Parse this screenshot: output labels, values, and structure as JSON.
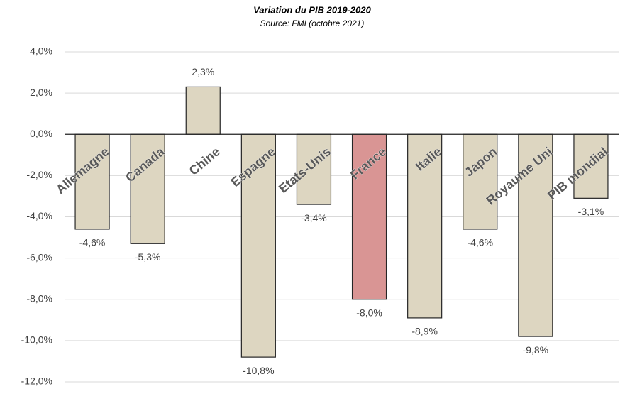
{
  "chart_data": {
    "type": "bar",
    "title": "Variation du PIB 2019-2020",
    "subtitle": "Source: FMI (octobre 2021)",
    "categories": [
      "Allemagne",
      "Canada",
      "Chine",
      "Espagne",
      "Etats-Unis",
      "France",
      "Italie",
      "Japon",
      "Royaume Uni",
      "PIB mondial"
    ],
    "values": [
      -4.6,
      -5.3,
      2.3,
      -10.8,
      -3.4,
      -8.0,
      -8.9,
      -4.6,
      -9.8,
      -3.1
    ],
    "value_labels": [
      "-4,6%",
      "-5,3%",
      "2,3%",
      "-10,8%",
      "-3,4%",
      "-8,0%",
      "-8,9%",
      "-4,6%",
      "-9,8%",
      "-3,1%"
    ],
    "colors": [
      "#ddd6c1",
      "#ddd6c1",
      "#ddd6c1",
      "#ddd6c1",
      "#ddd6c1",
      "#d99594",
      "#ddd6c1",
      "#ddd6c1",
      "#ddd6c1",
      "#ddd6c1"
    ],
    "ylim": [
      -12,
      4
    ],
    "yticks": [
      {
        "value": -12,
        "label": "-12,0%"
      },
      {
        "value": -10,
        "label": "-10,0%"
      },
      {
        "value": -8,
        "label": "-8,0%"
      },
      {
        "value": -6,
        "label": "-6,0%"
      },
      {
        "value": -4,
        "label": "-4,0%"
      },
      {
        "value": -2,
        "label": "-2,0%"
      },
      {
        "value": 0,
        "label": "0,0%"
      },
      {
        "value": 2,
        "label": "2,0%"
      },
      {
        "value": 4,
        "label": "4,0%"
      }
    ],
    "grid": true
  }
}
